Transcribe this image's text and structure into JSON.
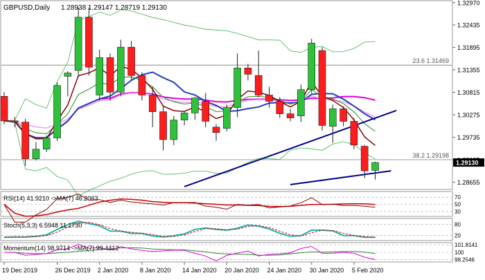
{
  "chart_data": [
    {
      "type": "candlestick",
      "symbol_label": "GBPUSD,Daily",
      "ohlc_label": "1.28938 1.29147 1.28719 1.29130",
      "ylim": [
        1.285,
        1.33
      ],
      "y_ticks": [
        "1.32970",
        "1.32435",
        "1.31895",
        "1.31355",
        "1.30815",
        "1.30275",
        "1.29735",
        "1.29195",
        "1.28655"
      ],
      "price_tag": "1.29130",
      "levels": [
        {
          "label": "23.6 1.31469",
          "value": 1.31469
        },
        {
          "label": "38.2 1.29198",
          "value": 1.29198
        }
      ],
      "x_labels": [
        {
          "label": "19 Dec 2019",
          "index": 0
        },
        {
          "label": "26 Dec 2019",
          "index": 5
        },
        {
          "label": "2 Jan 2020",
          "index": 9
        },
        {
          "label": "8 Jan 2020",
          "index": 13
        },
        {
          "label": "14 Jan 2020",
          "index": 17
        },
        {
          "label": "20 Jan 2020",
          "index": 21
        },
        {
          "label": "24 Jan 2020",
          "index": 25
        },
        {
          "label": "30 Jan 2020",
          "index": 29
        },
        {
          "label": "5 Feb 2020",
          "index": 33
        }
      ],
      "candles": [
        [
          1.3072,
          1.3082,
          1.3005,
          1.3013
        ],
        [
          1.3013,
          1.3022,
          1.2998,
          1.301
        ],
        [
          1.301,
          1.3018,
          1.2905,
          1.2922
        ],
        [
          1.2922,
          1.2962,
          1.2918,
          1.2945
        ],
        [
          1.2945,
          1.2978,
          1.2938,
          1.2972
        ],
        [
          1.2972,
          1.3105,
          1.2965,
          1.3098
        ],
        [
          1.312,
          1.3132,
          1.3072,
          1.3128
        ],
        [
          1.3134,
          1.3285,
          1.3118,
          1.3262
        ],
        [
          1.3262,
          1.3285,
          1.3122,
          1.3142
        ],
        [
          1.3075,
          1.3184,
          1.3062,
          1.3165
        ],
        [
          1.3165,
          1.3175,
          1.3062,
          1.3082
        ],
        [
          1.3082,
          1.3208,
          1.3072,
          1.319
        ],
        [
          1.319,
          1.3205,
          1.3112,
          1.3122
        ],
        [
          1.3122,
          1.313,
          1.3062,
          1.3075
        ],
        [
          1.3075,
          1.3095,
          1.2998,
          1.3035
        ],
        [
          1.3035,
          1.3048,
          1.2942,
          1.2968
        ],
        [
          1.2968,
          1.3025,
          1.2955,
          1.3015
        ],
        [
          1.3015,
          1.3035,
          1.3002,
          1.3032
        ],
        [
          1.3032,
          1.307,
          1.3015,
          1.3068
        ],
        [
          1.306,
          1.308,
          1.2998,
          1.3012
        ],
        [
          1.2998,
          1.3005,
          1.2965,
          1.2985
        ],
        [
          1.2995,
          1.3052,
          1.2988,
          1.3045
        ],
        [
          1.3045,
          1.3175,
          1.3022,
          1.314
        ],
        [
          1.314,
          1.315,
          1.311,
          1.3125
        ],
        [
          1.3122,
          1.3182,
          1.307,
          1.3075
        ],
        [
          1.3075,
          1.3095,
          1.3045,
          1.306
        ],
        [
          1.306,
          1.307,
          1.302,
          1.303
        ],
        [
          1.303,
          1.3042,
          1.3012,
          1.302
        ],
        [
          1.3025,
          1.31,
          1.301,
          1.3088
        ],
        [
          1.3088,
          1.321,
          1.308,
          1.32
        ],
        [
          1.3182,
          1.319,
          1.299,
          1.3002
        ],
        [
          1.3,
          1.3052,
          1.296,
          1.3042
        ],
        [
          1.3042,
          1.3048,
          1.3,
          1.3012
        ],
        [
          1.3012,
          1.302,
          1.2945,
          1.2955
        ],
        [
          1.2952,
          1.2955,
          1.2875,
          1.2893
        ],
        [
          1.2894,
          1.2915,
          1.2872,
          1.2913
        ]
      ]
    },
    {
      "type": "line",
      "title": "RSI(14) 41.9210 ->MA(7) 46.2063",
      "y_ticks": [
        "70",
        "50",
        "30"
      ]
    },
    {
      "type": "line",
      "title": "Stoch(5,3,3) 6.5948 11.1730",
      "y_ticks": [
        "80",
        "20"
      ]
    },
    {
      "type": "line",
      "title": "Momentum(14) 98.9714 ->MA(7) 99.4412",
      "y_ticks": [
        "101.8141",
        "100",
        "98.2546"
      ]
    }
  ]
}
